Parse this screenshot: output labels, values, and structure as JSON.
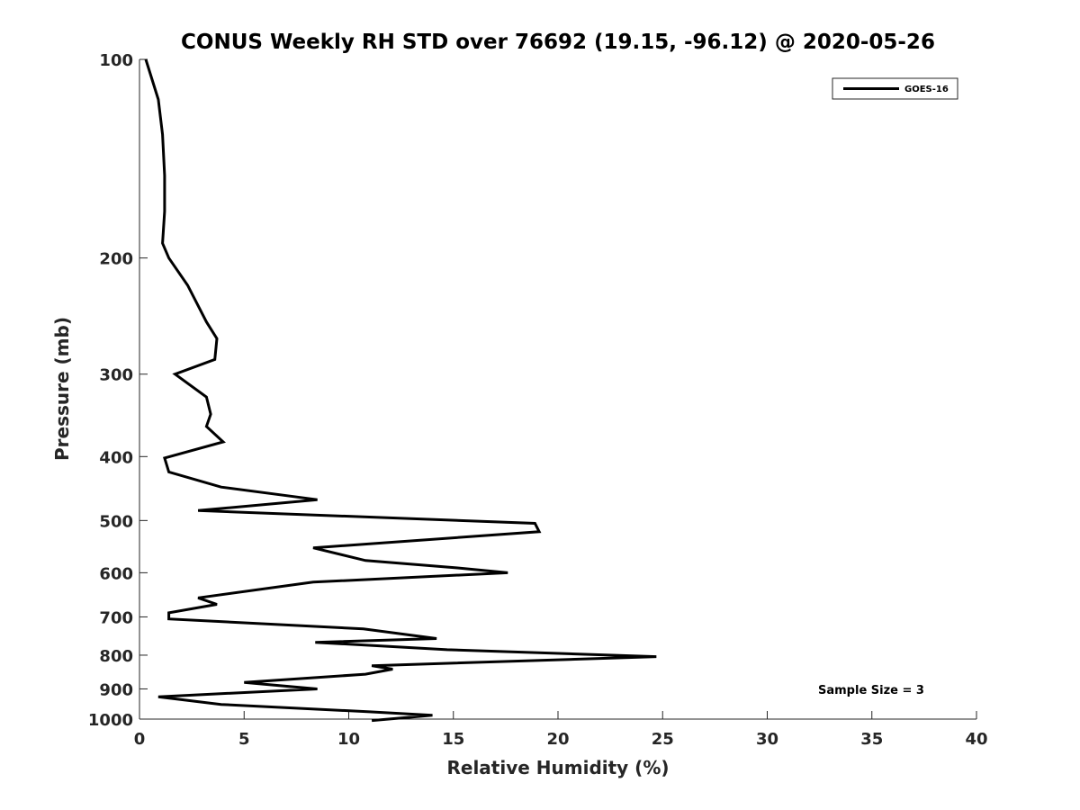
{
  "chart_data": {
    "type": "line",
    "title": "CONUS Weekly RH STD over 76692 (19.15, -96.12) @ 2020-05-26",
    "xlabel": "Relative Humidity (%)",
    "ylabel": "Pressure (mb)",
    "xlim": [
      0,
      40
    ],
    "ylim": [
      100,
      1000
    ],
    "yscale": "log",
    "y_reversed": true,
    "x_ticks": [
      0,
      5,
      10,
      15,
      20,
      25,
      30,
      35,
      40
    ],
    "y_ticks": [
      100,
      200,
      300,
      400,
      500,
      600,
      700,
      800,
      900,
      1000
    ],
    "grid": false,
    "legend_position": "top-right",
    "annotation": "Sample Size = 3",
    "series": [
      {
        "name": "GOES-16",
        "color": "#000000",
        "x": [
          0.3,
          0.9,
          1.1,
          1.2,
          1.2,
          1.1,
          1.4,
          2.3,
          3.2,
          3.7,
          3.6,
          1.7,
          3.2,
          3.4,
          3.2,
          4.0,
          1.2,
          1.4,
          3.9,
          8.5,
          2.8,
          18.9,
          19.1,
          8.3,
          10.8,
          15.2,
          17.6,
          8.3,
          2.8,
          3.7,
          1.4,
          1.4,
          10.7,
          14.2,
          8.4,
          14.7,
          24.7,
          11.1,
          12.1,
          10.8,
          5.0,
          8.5,
          0.9,
          3.9,
          11.0,
          14.0,
          11.1
        ],
        "y": [
          100,
          115,
          130,
          150,
          170,
          190,
          200,
          220,
          250,
          265,
          285,
          300,
          325,
          345,
          360,
          380,
          402,
          422,
          445,
          465,
          483,
          505,
          520,
          550,
          575,
          590,
          600,
          620,
          655,
          670,
          690,
          705,
          730,
          755,
          765,
          785,
          804,
          830,
          840,
          855,
          880,
          900,
          925,
          950,
          975,
          987,
          1005
        ]
      }
    ]
  }
}
